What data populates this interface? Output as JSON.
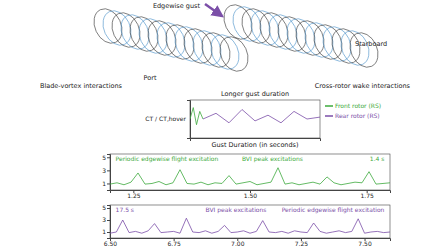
{
  "diagram": {
    "labels": [
      "Edgewise gust",
      "Port",
      "Starboard",
      "Blade-vortex interactions",
      "Cross-rotor wake interactions",
      "Longer gust duration"
    ]
  },
  "chart_data": [
    {
      "type": "line",
      "xlabel": "Gust Duration (in seconds)",
      "ylabel": "CT / CT,hover",
      "xlim": [
        0,
        20
      ],
      "ylim": [
        0,
        2
      ],
      "tick_labels": false,
      "legend": "right",
      "series": [
        {
          "name": "Front rotor (RS)",
          "color": "#3daa3d",
          "x": [
            0,
            0.5,
            1,
            1.5,
            2
          ],
          "values": [
            1,
            1.6,
            0.7,
            1.4,
            1
          ]
        },
        {
          "name": "Rear rotor (RS)",
          "color": "#7b4fa8",
          "x": [
            2,
            4,
            6,
            8,
            10,
            12,
            14,
            16,
            18,
            20
          ],
          "values": [
            1,
            1.3,
            0.8,
            1.5,
            0.9,
            1.2,
            0.8,
            1.4,
            1.0,
            1.1
          ]
        }
      ]
    },
    {
      "type": "line",
      "xlim": [
        1.2,
        1.8
      ],
      "ylim": [
        0,
        5.5
      ],
      "xticks": [
        {
          "value": 1.25,
          "label": "1.25"
        },
        {
          "value": 1.5,
          "label": "1.50"
        },
        {
          "value": 1.75,
          "label": "1.75"
        }
      ],
      "yticks": [
        1,
        3,
        5
      ],
      "annotations": [
        "Periodic edgewise flight excitation",
        "BVI peak excitations",
        "1.4 s"
      ],
      "x": [
        1.2,
        1.215,
        1.23,
        1.245,
        1.26,
        1.275,
        1.29,
        1.305,
        1.32,
        1.335,
        1.35,
        1.365,
        1.38,
        1.395,
        1.41,
        1.425,
        1.44,
        1.455,
        1.47,
        1.485,
        1.5,
        1.515,
        1.53,
        1.545,
        1.56,
        1.575,
        1.59,
        1.605,
        1.62,
        1.635,
        1.65,
        1.665,
        1.68,
        1.695,
        1.71,
        1.725,
        1.74,
        1.755,
        1.77,
        1.785,
        1.8
      ],
      "series": [
        {
          "color": "#3daa3d",
          "values": [
            0.9,
            1.1,
            0.8,
            1.2,
            2.6,
            0.9,
            1.0,
            1.3,
            0.8,
            1.1,
            3.1,
            1.0,
            0.9,
            1.2,
            0.8,
            1.1,
            1.0,
            2.2,
            0.9,
            1.1,
            1.3,
            0.8,
            1.0,
            1.2,
            3.4,
            0.9,
            1.1,
            0.8,
            1.0,
            1.2,
            0.9,
            2.0,
            1.1,
            0.8,
            1.0,
            1.2,
            1.1,
            2.8,
            0.9,
            1.0,
            1.1
          ]
        }
      ]
    },
    {
      "type": "line",
      "xlim": [
        6.5,
        7.6
      ],
      "ylim": [
        0,
        5.5
      ],
      "xticks": [
        {
          "value": 6.5,
          "label": "6.50"
        },
        6.75,
        {
          "value": 7,
          "label": "7.00"
        },
        7.25,
        {
          "value": 7.5,
          "label": "7.50"
        }
      ],
      "yticks": [
        1,
        3,
        5
      ],
      "annotations": [
        "17.5 s",
        "BVI peak excitations",
        "Periodic edgewise flight excitation"
      ],
      "x": [
        6.5,
        6.525,
        6.55,
        6.575,
        6.6,
        6.625,
        6.65,
        6.675,
        6.7,
        6.725,
        6.75,
        6.775,
        6.8,
        6.825,
        6.85,
        6.875,
        6.9,
        6.925,
        6.95,
        6.975,
        7.0,
        7.025,
        7.05,
        7.075,
        7.1,
        7.125,
        7.15,
        7.175,
        7.2,
        7.225,
        7.25,
        7.275,
        7.3,
        7.325,
        7.35,
        7.375,
        7.4,
        7.425,
        7.45,
        7.475,
        7.5,
        7.525,
        7.55,
        7.575,
        7.6
      ],
      "series": [
        {
          "color": "#7b4fa8",
          "values": [
            0.8,
            1.0,
            3.0,
            0.9,
            1.1,
            0.8,
            1.2,
            2.4,
            0.9,
            1.0,
            1.1,
            0.8,
            3.3,
            1.0,
            0.9,
            1.2,
            0.8,
            1.1,
            2.1,
            0.9,
            1.0,
            1.2,
            0.8,
            1.1,
            2.9,
            1.0,
            0.9,
            1.1,
            0.8,
            1.2,
            1.0,
            0.9,
            2.5,
            1.1,
            0.8,
            1.0,
            1.2,
            0.9,
            1.1,
            3.2,
            0.8,
            1.0,
            1.1,
            0.9,
            1.0
          ]
        }
      ]
    }
  ]
}
